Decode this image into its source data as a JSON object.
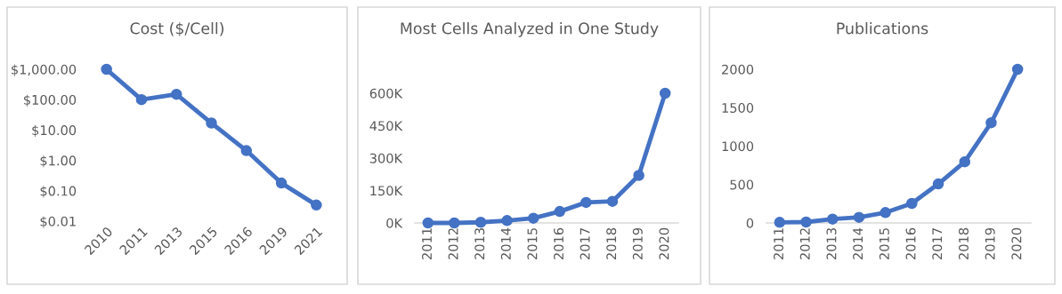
{
  "chart_data": [
    {
      "type": "line",
      "title": "Cost ($/Cell)",
      "log": true,
      "marker": "circle",
      "line_style": "solid",
      "categories": [
        "2010",
        "2011",
        "2013",
        "2015",
        "2016",
        "2019",
        "2021"
      ],
      "series": [
        {
          "color": "#4472c4",
          "values": [
            1000,
            100,
            150,
            17,
            2.1,
            0.18,
            0.034
          ]
        }
      ],
      "ylim": [
        0.01,
        1000
      ],
      "yticks": [
        {
          "value": 0.01,
          "label": "$0.01"
        },
        {
          "value": 0.1,
          "label": "$0.10"
        },
        {
          "value": 1,
          "label": "$1.00"
        },
        {
          "value": 10,
          "label": "$10.00"
        },
        {
          "value": 100,
          "label": "$100.00"
        },
        {
          "value": 1000,
          "label": "$1,000.00"
        }
      ]
    },
    {
      "type": "line",
      "title": "Most Cells Analyzed in One Study",
      "marker": "circle",
      "line_style": "solid",
      "categories": [
        "2011",
        "2012",
        "2013",
        "2014",
        "2015",
        "2016",
        "2017",
        "2018",
        "2019",
        "2020"
      ],
      "series": [
        {
          "color": "#4472c4",
          "values": [
            0,
            0,
            3000,
            11000,
            22000,
            53000,
            95000,
            100000,
            220000,
            600000
          ]
        }
      ],
      "ylim": [
        0,
        600000
      ],
      "yticks": [
        {
          "value": 0,
          "label": "0K"
        },
        {
          "value": 150000,
          "label": "150K"
        },
        {
          "value": 300000,
          "label": "300K"
        },
        {
          "value": 450000,
          "label": "450K"
        },
        {
          "value": 600000,
          "label": "600K"
        }
      ]
    },
    {
      "type": "line",
      "title": "Publications",
      "marker": "circle",
      "line_style": "solid",
      "categories": [
        "2011",
        "2012",
        "2013",
        "2014",
        "2015",
        "2016",
        "2017",
        "2018",
        "2019",
        "2020"
      ],
      "series": [
        {
          "color": "#4472c4",
          "values": [
            8,
            12,
            50,
            73,
            135,
            254,
            508,
            796,
            1304,
            2000
          ]
        }
      ],
      "ylim": [
        0,
        2000
      ],
      "yticks": [
        0,
        500,
        1000,
        1500,
        2000
      ]
    }
  ]
}
